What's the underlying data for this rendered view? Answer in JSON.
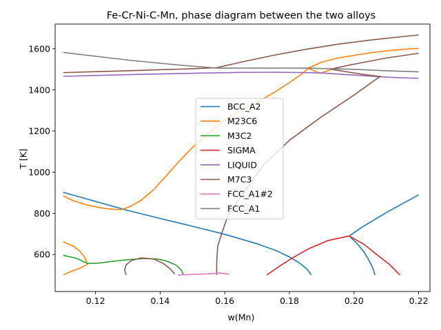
{
  "chart_data": {
    "type": "line",
    "title": "Fe-Cr-Ni-C-Mn, phase diagram between the two alloys",
    "xlabel": "w(Mn)",
    "ylabel": "T [K]",
    "xlim": [
      0.1075,
      0.2235
    ],
    "ylim": [
      420,
      1720
    ],
    "xticks": [
      0.12,
      0.14,
      0.16,
      0.18,
      0.2,
      0.22
    ],
    "yticks": [
      600,
      800,
      1000,
      1200,
      1400,
      1600
    ],
    "legend_position": "center",
    "grid": false,
    "series": [
      {
        "name": "BCC_A2",
        "color": "#1f77b4",
        "segments": [
          [
            [
              0.11,
              902
            ],
            [
              0.12,
              858
            ],
            [
              0.13,
              814
            ],
            [
              0.14,
              775
            ],
            [
              0.15,
              737
            ],
            [
              0.16,
              698
            ],
            [
              0.17,
              652
            ],
            [
              0.176,
              618
            ],
            [
              0.18,
              588
            ],
            [
              0.183,
              560
            ],
            [
              0.1855,
              528
            ],
            [
              0.1868,
              500
            ]
          ],
          [
            [
              0.1985,
              690
            ],
            [
              0.201,
              652
            ],
            [
              0.203,
              614
            ],
            [
              0.2045,
              575
            ],
            [
              0.2058,
              535
            ],
            [
              0.2065,
              500
            ]
          ],
          [
            [
              0.1985,
              690
            ],
            [
              0.203,
              738
            ],
            [
              0.208,
              785
            ],
            [
              0.213,
              830
            ],
            [
              0.2175,
              868
            ],
            [
              0.22,
              890
            ]
          ]
        ]
      },
      {
        "name": "M23C6",
        "color": "#ff7f0e",
        "segments": [
          [
            [
              0.11,
              885
            ],
            [
              0.113,
              862
            ],
            [
              0.117,
              842
            ],
            [
              0.121,
              828
            ],
            [
              0.125,
              820
            ],
            [
              0.128,
              818
            ],
            [
              0.131,
              835
            ],
            [
              0.134,
              862
            ],
            [
              0.138,
              915
            ],
            [
              0.142,
              985
            ],
            [
              0.146,
              1055
            ],
            [
              0.15,
              1120
            ],
            [
              0.155,
              1190
            ],
            [
              0.16,
              1255
            ],
            [
              0.165,
              1302
            ],
            [
              0.17,
              1340
            ],
            [
              0.175,
              1385
            ],
            [
              0.18,
              1435
            ],
            [
              0.184,
              1480
            ],
            [
              0.186,
              1507
            ],
            [
              0.19,
              1535
            ],
            [
              0.195,
              1555
            ],
            [
              0.2,
              1568
            ],
            [
              0.205,
              1580
            ],
            [
              0.21,
              1590
            ],
            [
              0.215,
              1597
            ],
            [
              0.22,
              1602
            ]
          ],
          [
            [
              0.1855,
              1507
            ],
            [
              0.1895,
              1480
            ]
          ],
          [
            [
              0.1895,
              1480
            ],
            [
              0.193,
              1500
            ]
          ],
          [
            [
              0.11,
              662
            ],
            [
              0.113,
              642
            ],
            [
              0.115,
              618
            ],
            [
              0.1165,
              590
            ],
            [
              0.1175,
              555
            ]
          ],
          [
            [
              0.11,
              500
            ],
            [
              0.1125,
              518
            ],
            [
              0.115,
              532
            ],
            [
              0.1175,
              552
            ]
          ]
        ]
      },
      {
        "name": "M3C2",
        "color": "#2ca02c",
        "segments": [
          [
            [
              0.11,
              596
            ],
            [
              0.114,
              582
            ],
            [
              0.1175,
              556
            ],
            [
              0.121,
              558
            ],
            [
              0.126,
              568
            ],
            [
              0.131,
              576
            ],
            [
              0.135,
              580
            ],
            [
              0.139,
              578
            ],
            [
              0.142,
              568
            ],
            [
              0.145,
              548
            ],
            [
              0.1465,
              525
            ],
            [
              0.1472,
              503
            ]
          ]
        ]
      },
      {
        "name": "SIGMA",
        "color": "#d62728",
        "segments": [
          [
            [
              0.173,
              500
            ],
            [
              0.177,
              544
            ],
            [
              0.181,
              584
            ],
            [
              0.186,
              628
            ],
            [
              0.192,
              668
            ],
            [
              0.1985,
              690
            ],
            [
              0.203,
              650
            ],
            [
              0.207,
              600
            ],
            [
              0.211,
              551
            ],
            [
              0.2142,
              500
            ]
          ]
        ]
      },
      {
        "name": "LIQUID",
        "color": "#9467bd",
        "segments": [
          [
            [
              0.11,
              1466
            ],
            [
              0.13,
              1474
            ],
            [
              0.15,
              1481
            ],
            [
              0.165,
              1485
            ],
            [
              0.175,
              1486
            ],
            [
              0.185,
              1484
            ],
            [
              0.19,
              1482
            ],
            [
              0.2,
              1472
            ],
            [
              0.21,
              1462
            ],
            [
              0.22,
              1456
            ]
          ]
        ]
      },
      {
        "name": "M7C3",
        "color": "#8c564b",
        "segments": [
          [
            [
              0.11,
              1484
            ],
            [
              0.13,
              1493
            ],
            [
              0.15,
              1503
            ],
            [
              0.1575,
              1508
            ],
            [
              0.165,
              1535
            ],
            [
              0.175,
              1568
            ],
            [
              0.185,
              1597
            ],
            [
              0.195,
              1622
            ],
            [
              0.205,
              1642
            ],
            [
              0.215,
              1659
            ],
            [
              0.22,
              1667
            ]
          ],
          [
            [
              0.1925,
              1500
            ],
            [
              0.2,
              1525
            ],
            [
              0.21,
              1555
            ],
            [
              0.22,
              1578
            ]
          ],
          [
            [
              0.1575,
              500
            ],
            [
              0.1575,
              560
            ],
            [
              0.1578,
              640
            ],
            [
              0.159,
              700
            ],
            [
              0.161,
              790
            ],
            [
              0.166,
              905
            ],
            [
              0.172,
              1035
            ],
            [
              0.18,
              1155
            ],
            [
              0.19,
              1270
            ],
            [
              0.2,
              1375
            ],
            [
              0.208,
              1465
            ]
          ],
          [
            [
              0.2085,
              1464
            ],
            [
              0.203,
              1475
            ],
            [
              0.193,
              1500
            ]
          ],
          [
            [
              0.1295,
              500
            ],
            [
              0.129,
              525
            ],
            [
              0.1295,
              550
            ],
            [
              0.131,
              570
            ],
            [
              0.134,
              583
            ],
            [
              0.138,
              578
            ],
            [
              0.141,
              556
            ],
            [
              0.143,
              532
            ],
            [
              0.1445,
              505
            ]
          ]
        ]
      },
      {
        "name": "FCC_A1#2",
        "color": "#e377c2",
        "segments": [
          [
            [
              0.1455,
              500
            ],
            [
              0.15,
              503
            ],
            [
              0.154,
              505
            ],
            [
              0.157,
              508
            ],
            [
              0.1585,
              510
            ],
            [
              0.161,
              505
            ],
            [
              0.1612,
              500
            ]
          ]
        ]
      },
      {
        "name": "FCC_A1",
        "color": "#7f7f7f",
        "segments": [
          [
            [
              0.11,
              1582
            ],
            [
              0.13,
              1545
            ],
            [
              0.145,
              1522
            ],
            [
              0.1575,
              1506
            ],
            [
              0.17,
              1506
            ],
            [
              0.185,
              1506
            ],
            [
              0.2,
              1500
            ],
            [
              0.21,
              1493
            ],
            [
              0.22,
              1488
            ]
          ]
        ]
      }
    ]
  }
}
